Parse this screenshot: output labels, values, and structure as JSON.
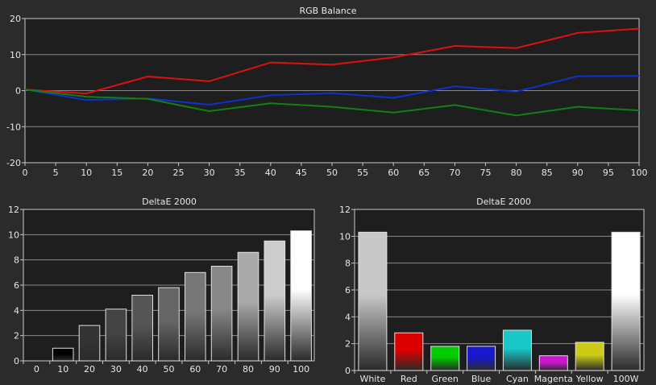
{
  "chart_data": [
    {
      "type": "line",
      "title": "RGB Balance",
      "x": [
        0,
        10,
        20,
        30,
        40,
        50,
        60,
        70,
        80,
        90,
        100
      ],
      "xticks": [
        0,
        5,
        10,
        15,
        20,
        25,
        30,
        35,
        40,
        45,
        50,
        55,
        60,
        65,
        70,
        75,
        80,
        85,
        90,
        95,
        100
      ],
      "xlim": [
        0,
        100
      ],
      "yticks": [
        -20,
        -10,
        0,
        10,
        20
      ],
      "ylim": [
        -20,
        20
      ],
      "grid": "horizontal",
      "series": [
        {
          "color": "#e01010",
          "values": [
            0.3,
            -0.8,
            3.9,
            2.6,
            7.8,
            7.2,
            9.2,
            12.4,
            11.8,
            16.0,
            17.2
          ]
        },
        {
          "color": "#1030d0",
          "values": [
            0.3,
            -2.6,
            -2.2,
            -3.9,
            -1.3,
            -0.7,
            -2.0,
            1.2,
            -0.3,
            4.0,
            4.1
          ]
        },
        {
          "color": "#108010",
          "values": [
            0.3,
            -1.7,
            -2.3,
            -5.7,
            -3.5,
            -4.5,
            -6.1,
            -4.0,
            -6.9,
            -4.5,
            -5.5
          ]
        }
      ]
    },
    {
      "type": "bar",
      "title": "DeltaE 2000",
      "categories": [
        "0",
        "10",
        "20",
        "30",
        "40",
        "50",
        "60",
        "70",
        "80",
        "90",
        "100"
      ],
      "values": [
        0,
        1.0,
        2.8,
        4.1,
        5.2,
        5.8,
        7.0,
        7.5,
        8.6,
        9.5,
        10.3
      ],
      "colors": [
        "#000000",
        "#000000",
        "#333333",
        "#444444",
        "#555555",
        "#666666",
        "#777777",
        "#888888",
        "#aaaaaa",
        "#cccccc",
        "#ffffff"
      ],
      "yticks": [
        0,
        2,
        4,
        6,
        8,
        10,
        12
      ],
      "ylim": [
        0,
        12
      ],
      "grid": "horizontal"
    },
    {
      "type": "bar",
      "title": "DeltaE 2000",
      "categories": [
        "White",
        "Red",
        "Green",
        "Blue",
        "Cyan",
        "Magenta",
        "Yellow",
        "100W"
      ],
      "values": [
        10.3,
        2.8,
        1.8,
        1.8,
        3.0,
        1.1,
        2.1,
        10.3
      ],
      "colors": [
        "#c8c8c8",
        "#dd0000",
        "#00cc00",
        "#1818cc",
        "#18c8c8",
        "#cc18cc",
        "#cccc18",
        "#ffffff"
      ],
      "yticks": [
        0,
        2,
        4,
        6,
        8,
        10,
        12
      ],
      "ylim": [
        0,
        12
      ],
      "grid": "horizontal"
    }
  ]
}
